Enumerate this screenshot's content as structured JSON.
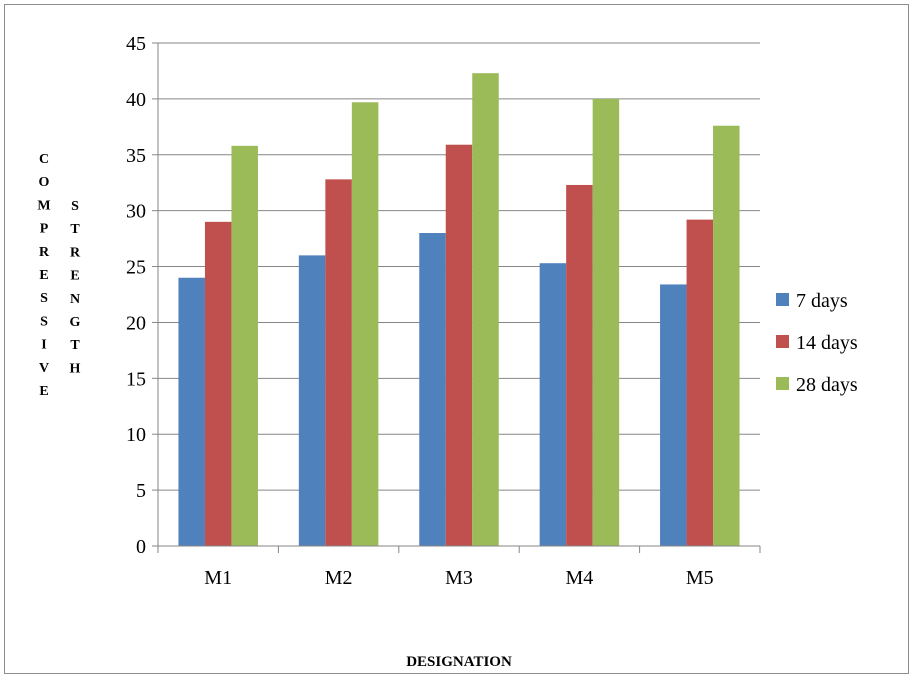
{
  "chart_data": {
    "type": "bar",
    "categories": [
      "M1",
      "M2",
      "M3",
      "M4",
      "M5"
    ],
    "series": [
      {
        "name": "7 days",
        "color": "#4f81bd",
        "values": [
          24.0,
          26.0,
          28.0,
          25.3,
          23.4
        ]
      },
      {
        "name": "14 days",
        "color": "#c0504d",
        "values": [
          29.0,
          32.8,
          35.9,
          32.3,
          29.2
        ]
      },
      {
        "name": "28 days",
        "color": "#9bbb59",
        "values": [
          35.8,
          39.7,
          42.3,
          40.0,
          37.6
        ]
      }
    ],
    "xlabel": "DESIGNATION",
    "ylabel_col1": "COMPRESSIVE",
    "ylabel_col2": "STRENGTH",
    "ylim": [
      0,
      45
    ],
    "yticks": [
      "0",
      "5",
      "10",
      "15",
      "20",
      "25",
      "30",
      "35",
      "40",
      "45"
    ],
    "grid": true,
    "legend_position": "right"
  }
}
